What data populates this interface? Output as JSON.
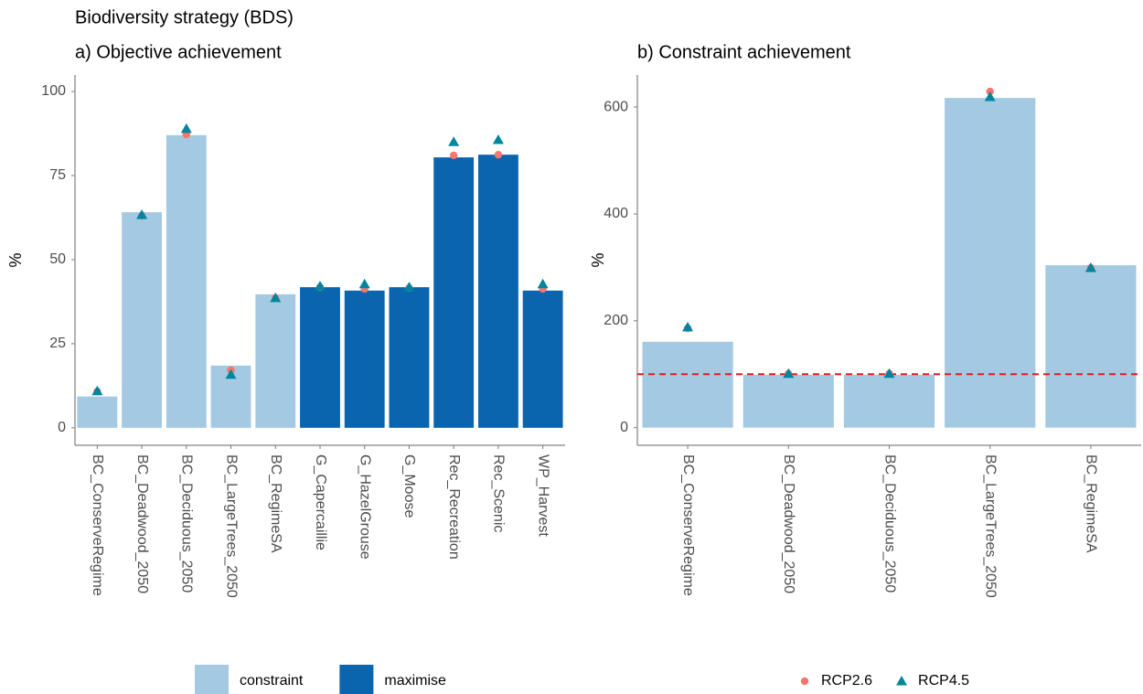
{
  "title": "Biodiversity strategy (BDS)",
  "chart_data": [
    {
      "type": "bar",
      "title": "a) Objective achievement",
      "y_label": "%",
      "categories": [
        "BC_ConserveRegime",
        "BC_Deadwood_2050",
        "BC_Deciduous_2050",
        "BC_LargeTrees_2050",
        "BC_RegimeSA",
        "G_Capercaillie",
        "G_HazelGrouse",
        "G_Moose",
        "Rec_Recreation",
        "Rec_Scenic",
        "WP_Harvest"
      ],
      "values": [
        9.3,
        64.1,
        87,
        18.5,
        39.7,
        41.8,
        40.8,
        41.8,
        80.4,
        81.2,
        40.8
      ],
      "bar_groups": [
        "constraint",
        "constraint",
        "constraint",
        "constraint",
        "constraint",
        "maximise",
        "maximise",
        "maximise",
        "maximise",
        "maximise",
        "maximise"
      ],
      "groups": [
        {
          "name": "constraint",
          "color": "#a3c9e3"
        },
        {
          "name": "maximise",
          "color": "#0a64ae"
        }
      ],
      "series": [
        {
          "name": "RCP2.6",
          "color": "#f8766d",
          "marker": "circle",
          "values": [
            10.8,
            63,
            87.2,
            17.1,
            38.6,
            41.8,
            41.3,
            41.6,
            81,
            81.2,
            41.3
          ]
        },
        {
          "name": "RCP4.5",
          "color": "#00859e",
          "marker": "triangle",
          "values": [
            10.9,
            63.3,
            88.9,
            15.8,
            38.6,
            42.1,
            42.7,
            41.8,
            85,
            85.6,
            42.7
          ]
        }
      ],
      "ylim": [
        -5.2,
        104.9
      ],
      "yticks": [
        0,
        25,
        50,
        75,
        100
      ],
      "legend": "bottom",
      "legend_source": "groups"
    },
    {
      "type": "bar",
      "title": "b) Constraint achievement",
      "y_label": "%",
      "categories": [
        "BC_ConserveRegime",
        "BC_Deadwood_2050",
        "BC_Deciduous_2050",
        "BC_LargeTrees_2050",
        "BC_RegimeSA"
      ],
      "values": [
        160.7,
        99,
        99,
        617,
        304
      ],
      "bar_groups": [
        "constraint",
        "constraint",
        "constraint",
        "constraint",
        "constraint"
      ],
      "groups": [
        {
          "name": "constraint",
          "color": "#a3c9e3"
        }
      ],
      "series": [
        {
          "name": "RCP2.6",
          "color": "#f8766d",
          "marker": "circle",
          "values": [
            186,
            101,
            101,
            629,
            299
          ]
        },
        {
          "name": "RCP4.5",
          "color": "#00859e",
          "marker": "triangle",
          "values": [
            188,
            101,
            101,
            619,
            299
          ]
        }
      ],
      "hline": 100,
      "hline_color": "#e41a1c",
      "ylim": [
        -33,
        660
      ],
      "yticks": [
        0,
        200,
        400,
        600
      ],
      "legend": "bottom",
      "legend_source": "series"
    }
  ]
}
